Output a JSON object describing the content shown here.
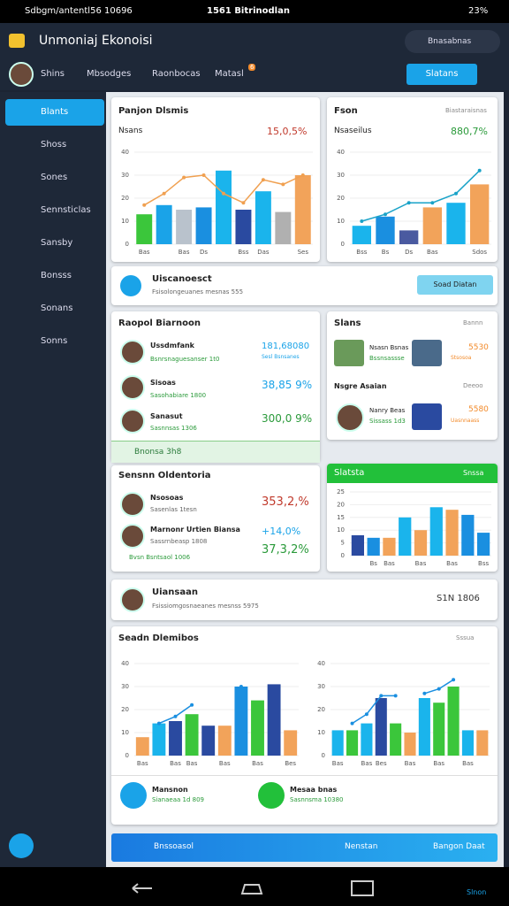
{
  "status": {
    "left": "Sdbgm/antentl56 10696",
    "center": "1561 Bitrinodlan",
    "battery": "23%"
  },
  "appbar": {
    "title": "Unmoniaj Ekonoisi",
    "search": "Bnasabnas"
  },
  "tabs": [
    "Shins",
    "Mbsodges",
    "Raonbocas",
    "Matasl"
  ],
  "tab_badge": 6,
  "action": "Slatans",
  "sidebar": [
    "Blants",
    "Shoss",
    "Sones",
    "Sennsticlas",
    "Sansby",
    "Bonsss",
    "Sonans",
    "Sonns"
  ],
  "card1": {
    "title": "Panjon Dlsmis",
    "label": "Nsans",
    "value": "15,0,5%"
  },
  "card2": {
    "title": "Fson",
    "badge": "Biastaraisnas",
    "label": "Nsaseilus",
    "value": "880,7%"
  },
  "strip1": {
    "title": "Uiscanoesct",
    "sub": "Fsisolongeuanes mesnas 555",
    "button": "Soad Diatan"
  },
  "card3": {
    "title": "Raopol Biarnoon",
    "rows": [
      {
        "name": "Ussdmfank",
        "sub": "Bsnrsnaguesanser 1t0",
        "value": "181,68080",
        "note": "Sesl Bsnsanes"
      },
      {
        "name": "Sisoas",
        "sub": "Sasohabiare 1800",
        "value": "38,85 9%"
      },
      {
        "name": "Sanasut",
        "sub": "Sasnnsas 1306",
        "value": "300,0 9%"
      }
    ],
    "footer": "Bnonsa 3h8"
  },
  "card4": {
    "title": "Slans",
    "badge": "Bannn",
    "rows": [
      {
        "name": "Nsasn Bsnas",
        "sub": "Bssnsassse",
        "value": "5530",
        "note": "Stsosoa"
      },
      {
        "name": "Nsgre Asaian",
        "badge": "Deeoo"
      },
      {
        "name": "Nanry Beas",
        "sub": "Sissass 1d3",
        "value": "5580",
        "note": "Uasnnaass"
      }
    ]
  },
  "card5": {
    "title": "Sensnn Oldentoria",
    "rows": [
      {
        "name": "Nsosoas",
        "sub": "Sasenlas 1tesn",
        "value": "353,2,%"
      },
      {
        "name": "Marnonr Urtien Biansa",
        "sub": "Sassrnbeasp 1808",
        "value": "+14,0%",
        "value2": "37,3,2%",
        "note": "Bvsn Bsntsaol 1006"
      }
    ]
  },
  "card6": {
    "title": "Slatsta",
    "badge": "Snssa"
  },
  "strip2": {
    "title": "Uiansaan",
    "sub": "Fsissiomgosnaeanes mesnss 5975",
    "value": "S1N 1806"
  },
  "card7": {
    "title": "Seadn Dlemibos",
    "badge": "Sssua",
    "foot1": {
      "title": "Mansnon",
      "sub": "Sianaeaa 1d 809"
    },
    "foot2": {
      "title": "Mesaa bnas",
      "sub": "Sasnnsma 10380"
    }
  },
  "bottom": {
    "left": "Bnssoasol",
    "mid": "Nenstan",
    "right": "Bangon Daat"
  },
  "navlabel": "Slnon",
  "chart_data": [
    {
      "type": "bar",
      "categories": [
        "Bas",
        null,
        "Bas",
        "Ds",
        null,
        "Bss",
        "Das",
        null,
        "Ses"
      ],
      "values": [
        13,
        17,
        15,
        16,
        32,
        15,
        23,
        14,
        30
      ],
      "colors": [
        "#3bc63b",
        "#1aa3e8",
        "#b9c2cc",
        "#1a8fe0",
        "#1ab4ec",
        "#2a4aa0",
        "#1ab4ec",
        "#b0b0b0",
        "#f2a35a"
      ],
      "line": [
        17,
        22,
        29,
        30,
        22,
        18,
        28,
        26,
        30
      ],
      "line_color": "#f0a050",
      "ylim": [
        0,
        40
      ],
      "yticks": [
        0,
        10,
        20,
        30,
        40
      ],
      "grid": true
    },
    {
      "type": "bar",
      "categories": [
        "Bss",
        "Bs",
        "Ds",
        "Bas",
        null,
        "Sdos"
      ],
      "values": [
        8,
        12,
        6,
        16,
        18,
        26
      ],
      "colors": [
        "#1ab4ec",
        "#1a8fe0",
        "#4a5aa0",
        "#f2a35a",
        "#1ab4ec",
        "#f2a35a"
      ],
      "line": [
        10,
        13,
        18,
        18,
        22,
        32
      ],
      "line_color": "#1aa3c8",
      "ylim": [
        0,
        40
      ],
      "yticks": [
        0,
        10,
        20,
        30,
        40
      ],
      "grid": true
    },
    {
      "type": "bar",
      "categories": [
        null,
        "Bs",
        "Bas",
        null,
        "Bas",
        null,
        "Bas",
        null,
        "Bss"
      ],
      "values": [
        8,
        7,
        7,
        15,
        10,
        19,
        18,
        16,
        9
      ],
      "colors": [
        "#2a4aa0",
        "#1a8fe0",
        "#f2a35a",
        "#1ab4ec",
        "#f2a35a",
        "#1ab4ec",
        "#f2a35a",
        "#1a8fe0",
        "#1a8fe0"
      ],
      "ylim": [
        0,
        25
      ],
      "yticks": [
        0,
        5,
        10,
        15,
        20,
        25
      ],
      "grid": true
    },
    {
      "type": "bar",
      "categories": [
        "Bas",
        null,
        "Bas",
        "Bas",
        null,
        "Bas",
        null,
        "Bas",
        null,
        "Bes"
      ],
      "values": [
        8,
        14,
        15,
        18,
        13,
        13,
        30,
        24,
        31,
        11
      ],
      "colors": [
        "#f2a35a",
        "#1ab4ec",
        "#2a4aa0",
        "#3bc63b",
        "#2a4aa0",
        "#f2a35a",
        "#1a8fe0",
        "#3bc63b",
        "#2a4aa0",
        "#f2a35a"
      ],
      "line": [
        null,
        14,
        17,
        22,
        null,
        null,
        30,
        null,
        null,
        null
      ],
      "line_color": "#1a8fe0",
      "ylim": [
        0,
        40
      ],
      "yticks": [
        0,
        10,
        20,
        30,
        40
      ],
      "grid": true
    },
    {
      "type": "bar",
      "categories": [
        "Bas",
        null,
        "Bas",
        "Bes",
        null,
        "Bas",
        null,
        "Bas",
        null,
        "Bas",
        null
      ],
      "values": [
        11,
        11,
        14,
        25,
        14,
        10,
        25,
        23,
        30,
        11,
        11
      ],
      "colors": [
        "#1ab4ec",
        "#3bc63b",
        "#1ab4ec",
        "#2a4aa0",
        "#3bc63b",
        "#f2a35a",
        "#1ab4ec",
        "#3bc63b",
        "#3bc63b",
        "#1ab4ec",
        "#f2a35a"
      ],
      "line": [
        null,
        14,
        18,
        26,
        26,
        null,
        27,
        29,
        33,
        null,
        null
      ],
      "line_color": "#1a8fe0",
      "ylim": [
        0,
        40
      ],
      "yticks": [
        0,
        10,
        20,
        30,
        40
      ],
      "grid": true
    }
  ]
}
